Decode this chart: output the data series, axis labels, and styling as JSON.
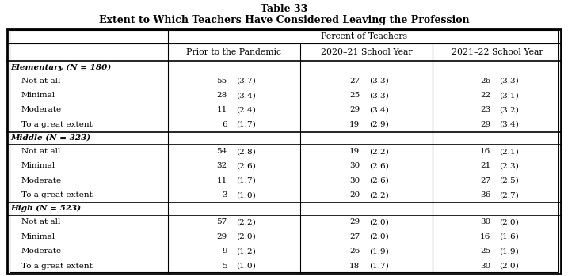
{
  "title_line1": "Table 33",
  "title_line2": "Extent to Which Teachers Have Considered Leaving the Profession",
  "header_span": "Percent of Teachers",
  "col_headers": [
    "Prior to the Pandemic",
    "2020–21 School Year",
    "2021–22 School Year"
  ],
  "sections": [
    {
      "label": "Elementary (N = 180)",
      "rows": [
        {
          "label": "Not at all",
          "num": [
            "55",
            "27",
            "26"
          ],
          "se": [
            "(3.7)",
            "(3.3)",
            "(3.3)"
          ]
        },
        {
          "label": "Minimal",
          "num": [
            "28",
            "25",
            "22"
          ],
          "se": [
            "(3.4)",
            "(3.3)",
            "(3.1)"
          ]
        },
        {
          "label": "Moderate",
          "num": [
            "11",
            "29",
            "23"
          ],
          "se": [
            "(2.4)",
            "(3.4)",
            "(3.2)"
          ]
        },
        {
          "label": "To a great extent",
          "num": [
            "6",
            "19",
            "29"
          ],
          "se": [
            "(1.7)",
            "(2.9)",
            "(3.4)"
          ]
        }
      ]
    },
    {
      "label": "Middle (N = 323)",
      "rows": [
        {
          "label": "Not at all",
          "num": [
            "54",
            "19",
            "16"
          ],
          "se": [
            "(2.8)",
            "(2.2)",
            "(2.1)"
          ]
        },
        {
          "label": "Minimal",
          "num": [
            "32",
            "30",
            "21"
          ],
          "se": [
            "(2.6)",
            "(2.6)",
            "(2.3)"
          ]
        },
        {
          "label": "Moderate",
          "num": [
            "11",
            "30",
            "27"
          ],
          "se": [
            "(1.7)",
            "(2.6)",
            "(2.5)"
          ]
        },
        {
          "label": "To a great extent",
          "num": [
            "3",
            "20",
            "36"
          ],
          "se": [
            "(1.0)",
            "(2.2)",
            "(2.7)"
          ]
        }
      ]
    },
    {
      "label": "High (N = 523)",
      "rows": [
        {
          "label": "Not at all",
          "num": [
            "57",
            "29",
            "30"
          ],
          "se": [
            "(2.2)",
            "(2.0)",
            "(2.0)"
          ]
        },
        {
          "label": "Minimal",
          "num": [
            "29",
            "27",
            "16"
          ],
          "se": [
            "(2.0)",
            "(2.0)",
            "(1.6)"
          ]
        },
        {
          "label": "Moderate",
          "num": [
            "9",
            "26",
            "25"
          ],
          "se": [
            "(1.2)",
            "(1.9)",
            "(1.9)"
          ]
        },
        {
          "label": "To a great extent",
          "num": [
            "5",
            "18",
            "30"
          ],
          "se": [
            "(1.0)",
            "(1.7)",
            "(2.0)"
          ]
        }
      ]
    }
  ],
  "background_color": "#ffffff"
}
